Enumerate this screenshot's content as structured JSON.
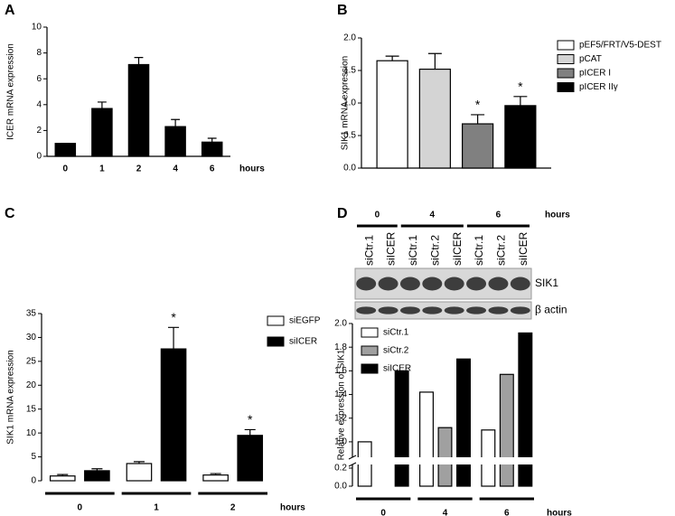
{
  "chart_data": [
    {
      "type": "bar",
      "panel": "A",
      "ylabel": "ICER mRNA expression",
      "xlabel": "hours",
      "categories": [
        "0",
        "1",
        "2",
        "4",
        "6"
      ],
      "values": [
        1.0,
        3.7,
        7.1,
        2.3,
        1.1
      ],
      "errors": [
        0,
        0.5,
        0.55,
        0.55,
        0.3
      ],
      "color": "#000000",
      "ylim": [
        0,
        10
      ],
      "yticks": [
        0,
        2,
        4,
        6,
        8,
        10
      ],
      "grid": false
    },
    {
      "type": "bar",
      "panel": "B",
      "ylabel": "SIK1 mRNA expression",
      "categories": [
        null
      ],
      "series": [
        {
          "name": "pEF5/FRT/V5-DEST",
          "color": "#ffffff",
          "values": [
            1.65
          ],
          "errors": [
            0.07
          ],
          "annotations": [
            null
          ]
        },
        {
          "name": "pCAT",
          "color": "#d4d4d4",
          "values": [
            1.52
          ],
          "errors": [
            0.24
          ],
          "annotations": [
            null
          ]
        },
        {
          "name": "pICER I",
          "color": "#808080",
          "values": [
            0.68
          ],
          "errors": [
            0.14
          ],
          "annotations": [
            "*"
          ]
        },
        {
          "name": "pICER IIγ",
          "color": "#000000",
          "values": [
            0.96
          ],
          "errors": [
            0.14
          ],
          "annotations": [
            "*"
          ]
        }
      ],
      "ylim": [
        0,
        2.0
      ],
      "yticks": [
        {
          "value": 0,
          "label": "0.0"
        },
        {
          "value": 0.5,
          "label": "0.5"
        },
        {
          "value": 1.0,
          "label": "1.0"
        },
        {
          "value": 1.5,
          "label": "1.5"
        },
        {
          "value": 2.0,
          "label": "2.0"
        }
      ],
      "legend": "right",
      "grid": false
    },
    {
      "type": "bar",
      "panel": "C",
      "ylabel": "SIK1 mRNA expression",
      "xlabel": "hours",
      "categories": [
        "0",
        "1",
        "2"
      ],
      "series": [
        {
          "name": "siEGFP",
          "color": "#ffffff",
          "values": [
            1.0,
            3.6,
            1.2
          ],
          "errors": [
            0.3,
            0.4,
            0.3
          ],
          "annotations": [
            null,
            null,
            null
          ]
        },
        {
          "name": "siICER",
          "color": "#000000",
          "values": [
            2.1,
            27.6,
            9.5
          ],
          "errors": [
            0.4,
            4.5,
            1.2
          ],
          "annotations": [
            null,
            "*",
            "*"
          ]
        }
      ],
      "ylim": [
        0,
        35
      ],
      "yticks": [
        0,
        5,
        10,
        15,
        20,
        25,
        30,
        35
      ],
      "category_underline": true,
      "legend": "right",
      "grid": false
    },
    {
      "type": "bar",
      "panel": "D",
      "ylabel": "Relative expression of SIK1",
      "xlabel": "hours",
      "categories": [
        "0",
        "4",
        "6"
      ],
      "series": [
        {
          "name": "siCtr.1",
          "color": "#ffffff",
          "values": [
            1.0,
            1.42,
            1.1
          ]
        },
        {
          "name": "siCtr.2",
          "color": "#a0a0a0",
          "values": [
            null,
            1.12,
            1.57
          ]
        },
        {
          "name": "siICER",
          "color": "#000000",
          "values": [
            1.6,
            1.7,
            1.92
          ]
        }
      ],
      "ylim": [
        0,
        2.0
      ],
      "axis_break": [
        0.2,
        0.9
      ],
      "yticks": [
        {
          "value": 0,
          "label": "0.0"
        },
        {
          "value": 0.2,
          "label": "0.2"
        },
        {
          "value": 1.0,
          "label": "1.0"
        },
        {
          "value": 1.2,
          "label": "1.2"
        },
        {
          "value": 1.4,
          "label": "1.4"
        },
        {
          "value": 1.6,
          "label": "1.6"
        },
        {
          "value": 1.8,
          "label": "1.8"
        },
        {
          "value": 2.0,
          "label": "2.0"
        }
      ],
      "category_underline": true,
      "legend": "top-left",
      "grid": false,
      "blot": {
        "unit": "hours",
        "rows": [
          "SIK1",
          "β actin"
        ],
        "groups": [
          {
            "label": "0",
            "lanes": [
              "siCtr.1",
              "siICER"
            ]
          },
          {
            "label": "4",
            "lanes": [
              "siCtr.1",
              "siCtr.2",
              "siICER"
            ]
          },
          {
            "label": "6",
            "lanes": [
              "siCtr.1",
              "siCtr.2",
              "siICER"
            ]
          }
        ]
      }
    }
  ]
}
